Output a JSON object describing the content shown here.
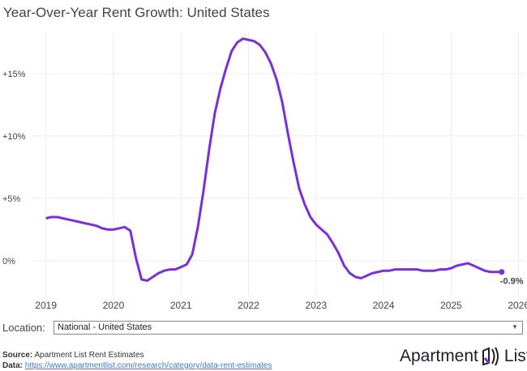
{
  "chart_data": {
    "type": "line",
    "title": "Year-Over-Year Rent Growth: United States",
    "xlabel": "",
    "ylabel": "",
    "x_start": "2019-01",
    "x_frequency": "monthly",
    "x_ticks": [
      "2019",
      "2020",
      "2021",
      "2022",
      "2023",
      "2024",
      "2025",
      "2026"
    ],
    "y_ticks": [
      {
        "value": 0,
        "label": "0%"
      },
      {
        "value": 5,
        "label": "+5%"
      },
      {
        "value": 10,
        "label": "+10%"
      },
      {
        "value": 15,
        "label": "+15%"
      }
    ],
    "xlim": [
      2018.8,
      2026.1
    ],
    "ylim": [
      -2.8,
      18.3
    ],
    "grid": true,
    "line_color": "#7b2fd6",
    "values": [
      3.4,
      3.5,
      3.5,
      3.4,
      3.3,
      3.2,
      3.1,
      3.0,
      2.9,
      2.8,
      2.6,
      2.5,
      2.5,
      2.6,
      2.7,
      2.4,
      0.2,
      -1.5,
      -1.6,
      -1.3,
      -1.0,
      -0.8,
      -0.7,
      -0.7,
      -0.5,
      -0.3,
      0.5,
      2.7,
      5.6,
      8.9,
      11.8,
      13.8,
      15.4,
      16.8,
      17.5,
      17.8,
      17.7,
      17.6,
      17.3,
      16.7,
      15.8,
      14.5,
      12.7,
      10.2,
      7.9,
      5.8,
      4.5,
      3.5,
      2.9,
      2.5,
      2.1,
      1.4,
      0.6,
      -0.4,
      -1.0,
      -1.3,
      -1.4,
      -1.2,
      -1.0,
      -0.9,
      -0.8,
      -0.8,
      -0.7,
      -0.7,
      -0.7,
      -0.7,
      -0.7,
      -0.8,
      -0.8,
      -0.8,
      -0.7,
      -0.7,
      -0.6,
      -0.4,
      -0.3,
      -0.2,
      -0.4,
      -0.6,
      -0.8,
      -0.9,
      -0.9,
      -0.9
    ],
    "end_label": "-0.9%"
  },
  "location": {
    "label": "Location:",
    "selected": "National - United States"
  },
  "footer": {
    "source_label": "Source:",
    "source_text": "Apartment List Rent Estimates",
    "data_label": "Data:",
    "data_link": "https://www.apartmentlist.com/research/category/data-rent-estimates"
  },
  "logo": {
    "text_left": "Apartment",
    "text_right": "List",
    "brand_color": "#7b2fd6"
  }
}
